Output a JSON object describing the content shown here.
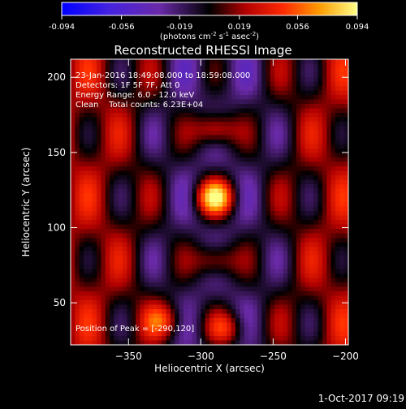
{
  "chart_data": {
    "type": "heatmap",
    "title": "Reconstructed RHESSI Image",
    "xlabel": "Heliocentric X (arcsec)",
    "ylabel": "Heliocentric Y (arcsec)",
    "xlim": [
      -390,
      -198
    ],
    "ylim": [
      22,
      212
    ],
    "x_ticks": [
      -350,
      -300,
      -250,
      -200
    ],
    "y_ticks": [
      50,
      100,
      150,
      200
    ],
    "colorbar": {
      "min": -0.094,
      "max": 0.094,
      "ticks": [
        "-0.094",
        "-0.056",
        "-0.019",
        "0.019",
        "0.056",
        "0.094"
      ],
      "tick_values": [
        -0.094,
        -0.056,
        -0.019,
        0.019,
        0.056,
        0.094
      ],
      "label_parts": {
        "a": "(photons cm",
        "a_sup": "-2",
        "b": " s",
        "b_sup": "-1",
        "c": " asec",
        "c_sup": "-2",
        "d": ")"
      }
    },
    "annotations": {
      "time_range": "23-Jan-2016 18:49:08.000 to 18:59:08.000",
      "detectors": "Detectors: 1F 5F 7F, Att 0",
      "energy_range": "Energy Range: 6.0 - 12.0 keV",
      "clean_info": "Clean    Total counts: 6.23E+04",
      "peak_position": "Position of Peak = [-290,120]"
    },
    "peak": [
      -290,
      120
    ],
    "sources": [
      {
        "x": -290,
        "y": 120,
        "value": 0.094
      },
      {
        "x": -290,
        "y": 165,
        "value": 0.07
      },
      {
        "x": -290,
        "y": 78,
        "value": 0.06
      },
      {
        "x": -282,
        "y": 33,
        "value": 0.05
      },
      {
        "x": -325,
        "y": 38,
        "value": 0.05
      }
    ]
  },
  "footer": {
    "timestamp": "1-Oct-2017 09:19"
  }
}
